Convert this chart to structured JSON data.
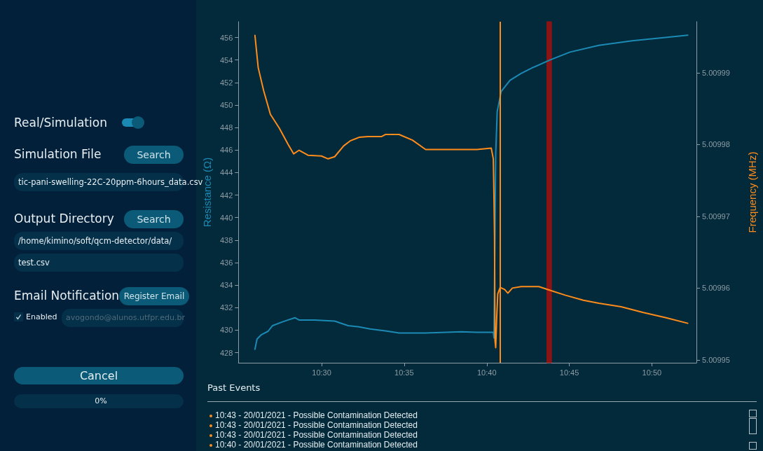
{
  "chart_data": {
    "type": "line",
    "ylabel": "Resistance (Ω)",
    "y2label": "Frequency (MHz)",
    "xlim": [
      10.416,
      10.8783
    ],
    "xticks": [
      {
        "value": 10.5,
        "label": "10:30"
      },
      {
        "value": 10.5833,
        "label": "10:35"
      },
      {
        "value": 10.6667,
        "label": "10:40"
      },
      {
        "value": 10.75,
        "label": "10:45"
      },
      {
        "value": 10.8333,
        "label": "10:50"
      }
    ],
    "ylim": [
      427.1,
      457.4
    ],
    "yticks": [
      428,
      430,
      432,
      434,
      436,
      438,
      440,
      442,
      444,
      446,
      448,
      450,
      452,
      454,
      456
    ],
    "y2lim": [
      5.0099496,
      5.0099971
    ],
    "y2ticks": [
      5.00995,
      5.00996,
      5.00997,
      5.00998,
      5.00999
    ],
    "grid": false,
    "marker": "none",
    "line_style": "solid",
    "series": [
      {
        "color": "#1b8ab5",
        "x": [
          10.4327,
          10.4348,
          10.4393,
          10.446,
          10.4505,
          10.4595,
          10.4662,
          10.473,
          10.4772,
          10.493,
          10.5132,
          10.5267,
          10.5367,
          10.549,
          10.567,
          10.5782,
          10.605,
          10.641,
          10.6567,
          10.6733,
          10.674,
          10.6747,
          10.6757,
          10.6772,
          10.6812,
          10.6902,
          10.7013,
          10.7125,
          10.7305,
          10.7507,
          10.7798,
          10.8133,
          10.847,
          10.8695
        ],
        "values": [
          428.3,
          429.2,
          429.6,
          429.9,
          430.4,
          430.7,
          430.9,
          431.1,
          430.9,
          430.9,
          430.8,
          430.4,
          430.3,
          430.1,
          429.9,
          429.75,
          429.75,
          429.85,
          429.8,
          429.8,
          429.3,
          436.3,
          445.6,
          449.4,
          451.2,
          452.2,
          452.8,
          453.3,
          454.0,
          454.7,
          455.3,
          455.7,
          456.0,
          456.2
        ]
      },
      {
        "color": "#ff8c1a",
        "axis": "y2",
        "x": [
          10.4327,
          10.436,
          10.4415,
          10.4483,
          10.4572,
          10.4662,
          10.4718,
          10.4773,
          10.4863,
          10.4998,
          10.5065,
          10.5132,
          10.5222,
          10.5288,
          10.5378,
          10.5468,
          10.5603,
          10.5647,
          10.5782,
          10.5917,
          10.605,
          10.6185,
          10.6387,
          10.6567,
          10.6712,
          10.6733,
          10.674,
          10.6745,
          10.675,
          10.6757,
          10.6767,
          10.6778,
          10.6802,
          10.6847,
          10.688,
          10.6925,
          10.7013,
          10.7125,
          10.7193,
          10.7305,
          10.7462,
          10.7642,
          10.7798,
          10.8022,
          10.8247,
          10.847,
          10.8695
        ],
        "values": [
          5.0099952,
          5.0099907,
          5.0099875,
          5.0099842,
          5.0099823,
          5.00998,
          5.0099787,
          5.0099792,
          5.0099785,
          5.0099784,
          5.009978,
          5.0099783,
          5.0099798,
          5.0099805,
          5.009981,
          5.0099811,
          5.0099811,
          5.0099814,
          5.0099814,
          5.0099806,
          5.0099793,
          5.0099793,
          5.0099793,
          5.0099793,
          5.0099795,
          5.009978,
          5.0099722,
          5.0099673,
          5.0099527,
          5.0099517,
          5.0099559,
          5.0099592,
          5.0099601,
          5.0099598,
          5.0099593,
          5.00996,
          5.0099602,
          5.0099602,
          5.0099602,
          5.0099597,
          5.009959,
          5.0099583,
          5.0099579,
          5.0099574,
          5.0099566,
          5.0099559,
          5.0099551
        ]
      }
    ],
    "ref_lines": [
      {
        "axis": "x",
        "value": 10.6802,
        "color": "#ff8c1a"
      }
    ],
    "bands": [
      {
        "axis": "x",
        "from": 10.7273,
        "to": 10.732,
        "color": "#a01010"
      }
    ],
    "annotations": [
      "Real/Simulation",
      "Simulation File",
      "Search",
      "tic-pani-swelling-22C-20ppm-6hours_data.csv",
      "Output Directory",
      "Search",
      "/home/kimino/soft/qcm-detector/data/",
      "test.csv",
      "Email Notification",
      "Register Email",
      "Enabled",
      "avogondo@alunos.utfpr.edu.br",
      "Cancel",
      "0%",
      "Past Events",
      "10:43 - 20/01/2021 - Possible Contamination Detected",
      "10:43 - 20/01/2021 - Possible Contamination Detected",
      "10:43 - 20/01/2021 - Possible Contamination Detected",
      "10:40 - 20/01/2021 - Possible Contamination Detected"
    ]
  }
}
